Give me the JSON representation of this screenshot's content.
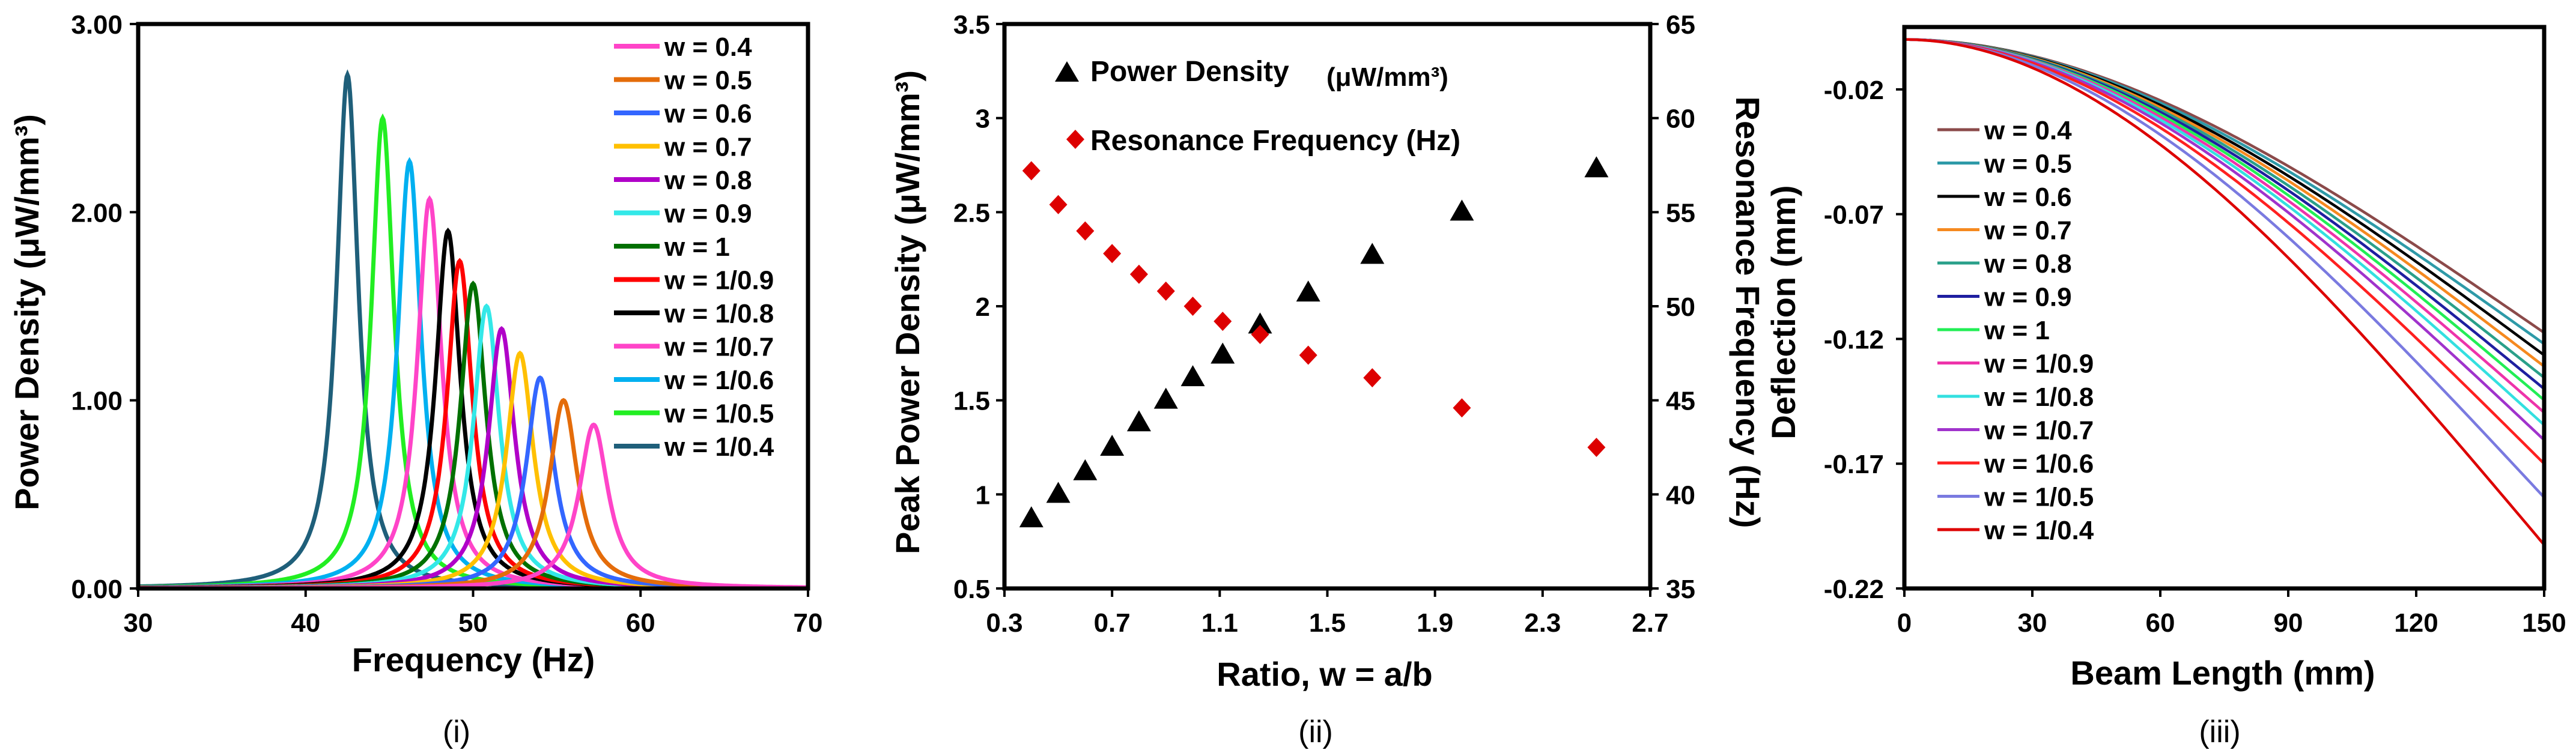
{
  "chart_data": [
    {
      "type": "line",
      "panel_label": "(i)",
      "xlabel": "Frequency (Hz)",
      "ylabel": "Power Density (μW/mm³)",
      "xlim": [
        30,
        70
      ],
      "ylim": [
        0,
        3
      ],
      "xticks": [
        "30",
        "40",
        "50",
        "60",
        "70"
      ],
      "yticks": [
        "0.00",
        "1.00",
        "2.00",
        "3.00"
      ],
      "legend_position": "top-right",
      "x_label_value_note": "peak frequency (Hz) and peak power density (μW/mm³) per curve",
      "series": [
        {
          "name": "w = 0.4",
          "color": "#ff44c8",
          "peak_x": 57.2,
          "peak_y": 0.87
        },
        {
          "name": "w = 0.5",
          "color": "#e46c0a",
          "peak_x": 55.4,
          "peak_y": 1.0
        },
        {
          "name": "w = 0.6",
          "color": "#3366ff",
          "peak_x": 54.0,
          "peak_y": 1.12
        },
        {
          "name": "w = 0.7",
          "color": "#ffc000",
          "peak_x": 52.8,
          "peak_y": 1.25
        },
        {
          "name": "w = 0.8",
          "color": "#b000c8",
          "peak_x": 51.7,
          "peak_y": 1.38
        },
        {
          "name": "w = 0.9",
          "color": "#33e8e8",
          "peak_x": 50.8,
          "peak_y": 1.5
        },
        {
          "name": "w = 1",
          "color": "#007000",
          "peak_x": 50.0,
          "peak_y": 1.62
        },
        {
          "name": "w = 1/0.9",
          "color": "#ff0000",
          "peak_x": 49.2,
          "peak_y": 1.74
        },
        {
          "name": "w = 1/0.8",
          "color": "#000000",
          "peak_x": 48.5,
          "peak_y": 1.9
        },
        {
          "name": "w = 1/0.7",
          "color": "#ff44c8",
          "peak_x": 47.4,
          "peak_y": 2.07
        },
        {
          "name": "w = 1/0.6",
          "color": "#00b0f0",
          "peak_x": 46.2,
          "peak_y": 2.27
        },
        {
          "name": "w = 1/0.5",
          "color": "#22ee22",
          "peak_x": 44.6,
          "peak_y": 2.5
        },
        {
          "name": "w = 1/0.4",
          "color": "#1f5f7a",
          "peak_x": 42.5,
          "peak_y": 2.73
        }
      ]
    },
    {
      "type": "scatter",
      "panel_label": "(ii)",
      "xlabel": "Ratio, w = a/b",
      "ylabel": "Peak Power Density (μW/mm³)",
      "y2label": "Resonance Frequency  (Hz)",
      "xlim": [
        0.3,
        2.7
      ],
      "ylim": [
        0.5,
        3.5
      ],
      "y2lim": [
        35,
        65
      ],
      "xticks": [
        "0.3",
        "0.7",
        "1.1",
        "1.5",
        "1.9",
        "2.3",
        "2.7"
      ],
      "yticks": [
        "0.5",
        "1",
        "1.5",
        "2",
        "2.5",
        "3",
        "3.5"
      ],
      "y2ticks": [
        "35",
        "40",
        "45",
        "50",
        "55",
        "60",
        "65"
      ],
      "legend_position": "top-left",
      "x": [
        0.4,
        0.5,
        0.6,
        0.7,
        0.8,
        0.9,
        1.0,
        1.111,
        1.25,
        1.429,
        1.667,
        2.0,
        2.5
      ],
      "series": [
        {
          "name": "Power Density",
          "name_unit": "(μW/mm³)",
          "axis": "left",
          "marker": "triangle",
          "color": "#000000",
          "values": [
            0.87,
            1.0,
            1.12,
            1.25,
            1.38,
            1.5,
            1.62,
            1.74,
            1.9,
            2.07,
            2.27,
            2.5,
            2.73
          ]
        },
        {
          "name": "Resonance Frequency (Hz)",
          "axis": "right",
          "marker": "diamond",
          "color": "#dd0000",
          "values": [
            57.2,
            55.4,
            54.0,
            52.8,
            51.7,
            50.8,
            50.0,
            49.2,
            48.5,
            47.4,
            46.2,
            44.6,
            42.5
          ]
        }
      ]
    },
    {
      "type": "line",
      "panel_label": "(iii)",
      "xlabel": "Beam Length (mm)",
      "ylabel": "Deflection (mm)",
      "xlim": [
        0,
        150
      ],
      "ylim": [
        -0.22,
        0.005
      ],
      "xticks": [
        "0",
        "30",
        "60",
        "90",
        "120",
        "150"
      ],
      "yticks": [
        "-0.02",
        "-0.07",
        "-0.12",
        "-0.17",
        "-0.22"
      ],
      "legend_position": "left",
      "x_label_value_note": "tip deflection (mm) at x = 150 mm per curve",
      "series": [
        {
          "name": "w = 0.4",
          "color": "#8b4a4a",
          "tip": -0.1175
        },
        {
          "name": "w = 0.5",
          "color": "#2e9aa8",
          "tip": -0.122
        },
        {
          "name": "w = 0.6",
          "color": "#000000",
          "tip": -0.1265
        },
        {
          "name": "w = 0.7",
          "color": "#f5891f",
          "tip": -0.131
        },
        {
          "name": "w = 0.8",
          "color": "#2aa08a",
          "tip": -0.1355
        },
        {
          "name": "w = 0.9",
          "color": "#1f1fa0",
          "tip": -0.14
        },
        {
          "name": "w = 1",
          "color": "#22ee55",
          "tip": -0.1445
        },
        {
          "name": "w = 1/0.9",
          "color": "#ee33aa",
          "tip": -0.1495
        },
        {
          "name": "w = 1/0.8",
          "color": "#33e0e0",
          "tip": -0.1545
        },
        {
          "name": "w = 1/0.7",
          "color": "#a033cc",
          "tip": -0.1605
        },
        {
          "name": "w = 1/0.6",
          "color": "#ff2020",
          "tip": -0.17
        },
        {
          "name": "w = 1/0.5",
          "color": "#7a7ae0",
          "tip": -0.1835
        },
        {
          "name": "w = 1/0.4",
          "color": "#dd0000",
          "tip": -0.2025
        }
      ]
    }
  ]
}
